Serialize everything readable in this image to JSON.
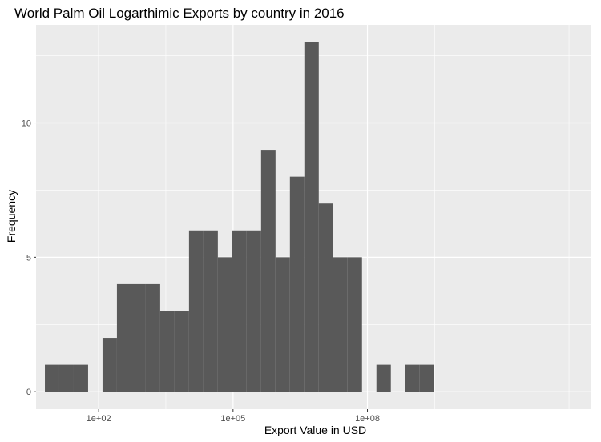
{
  "chart_data": {
    "type": "bar",
    "subtype": "histogram",
    "title": "World Palm Oil Logarthimic Exports by country in 2016",
    "xlabel": "Export Value in USD",
    "ylabel": "Frequency",
    "x_scale": "log10",
    "xlim": [
      4.0,
      10000000000000.0
    ],
    "ylim": [
      0,
      13
    ],
    "grid": true,
    "x_ticks": [
      {
        "value": 100,
        "label": "1e+02"
      },
      {
        "value": 100000,
        "label": "1e+05"
      },
      {
        "value": 100000000,
        "label": "1e+08"
      }
    ],
    "y_ticks": [
      {
        "value": 0,
        "label": "0"
      },
      {
        "value": 5,
        "label": "5"
      },
      {
        "value": 10,
        "label": "10"
      }
    ],
    "bin_width_decades": 0.333,
    "bins": [
      {
        "x0": 6.3,
        "x1": 13.2,
        "count": 1
      },
      {
        "x0": 13.2,
        "x1": 27.7,
        "count": 1
      },
      {
        "x0": 27.7,
        "x1": 58.1,
        "count": 1
      },
      {
        "x0": 58.1,
        "x1": 121.9,
        "count": 0
      },
      {
        "x0": 121.9,
        "x1": 255.7,
        "count": 2
      },
      {
        "x0": 255.7,
        "x1": 536.6,
        "count": 4
      },
      {
        "x0": 536.6,
        "x1": 1125.9,
        "count": 4
      },
      {
        "x0": 1125.9,
        "x1": 2362.2,
        "count": 4
      },
      {
        "x0": 2362.2,
        "x1": 4956.4,
        "count": 3
      },
      {
        "x0": 4956.4,
        "x1": 10399.4,
        "count": 3
      },
      {
        "x0": 10399.4,
        "x1": 21819.7,
        "count": 6
      },
      {
        "x0": 21819.7,
        "x1": 45782.0,
        "count": 6
      },
      {
        "x0": 45782.0,
        "x1": 96059.5,
        "count": 5
      },
      {
        "x0": 96059.5,
        "x1": 201547.8,
        "count": 6
      },
      {
        "x0": 201547.8,
        "x1": 422883.0,
        "count": 6
      },
      {
        "x0": 422883.0,
        "x1": 887283.5,
        "count": 9
      },
      {
        "x0": 887283.5,
        "x1": 1861700.0,
        "count": 5
      },
      {
        "x0": 1861700.0,
        "x1": 3906200.0,
        "count": 8
      },
      {
        "x0": 3906200.0,
        "x1": 8195800.0,
        "count": 13
      },
      {
        "x0": 8195800.0,
        "x1": 17196500.0,
        "count": 7
      },
      {
        "x0": 17196500.0,
        "x1": 36081000.0,
        "count": 5
      },
      {
        "x0": 36081000.0,
        "x1": 75705000.0,
        "count": 5
      },
      {
        "x0": 75705000.0,
        "x1": 158843000.0,
        "count": 0
      },
      {
        "x0": 158843000.0,
        "x1": 333277000.0,
        "count": 1
      },
      {
        "x0": 333277000.0,
        "x1": 699270000.0,
        "count": 0
      },
      {
        "x0": 699270000.0,
        "x1": 1467200000.0,
        "count": 1
      },
      {
        "x0": 1467200000.0,
        "x1": 3078400000.0,
        "count": 1
      }
    ],
    "colors": {
      "bar": "#595959",
      "panel": "#ebebeb",
      "grid": "#ffffff",
      "tick_label": "#4d4d4d",
      "tick_mark": "#333333"
    }
  }
}
